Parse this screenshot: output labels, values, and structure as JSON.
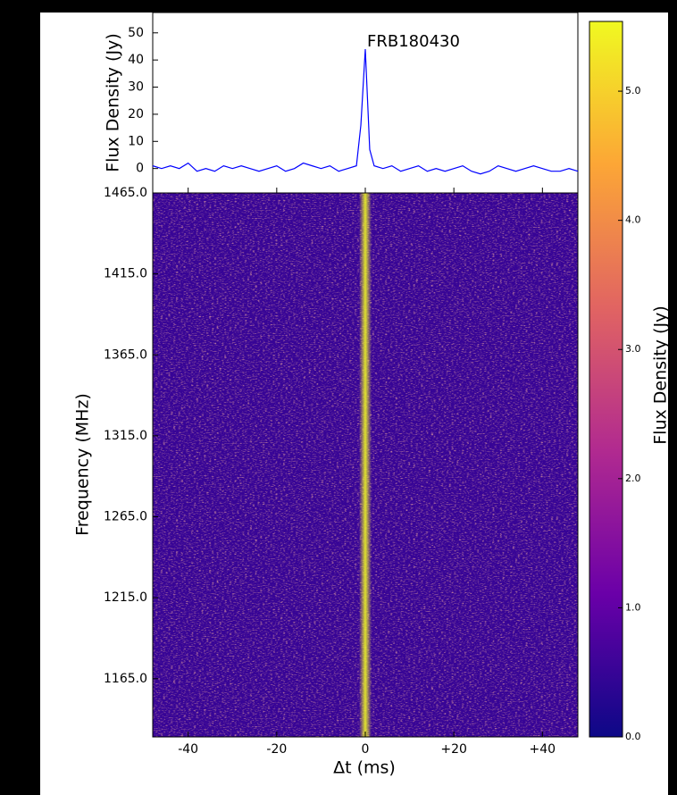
{
  "chart_data": [
    {
      "type": "line",
      "ylabel": "Flux Density (Jy)",
      "annotation": "FRB180430",
      "x": [
        -48,
        -46,
        -44,
        -42,
        -40,
        -38,
        -36,
        -34,
        -32,
        -30,
        -28,
        -26,
        -24,
        -22,
        -20,
        -18,
        -16,
        -14,
        -12,
        -10,
        -8,
        -6,
        -4,
        -2,
        -1,
        0,
        1,
        2,
        4,
        6,
        8,
        10,
        12,
        14,
        16,
        18,
        20,
        22,
        24,
        26,
        28,
        30,
        32,
        34,
        36,
        38,
        40,
        42,
        44,
        46,
        48
      ],
      "series": [
        {
          "color": "#0000ff",
          "values": [
            1,
            0,
            1,
            0,
            2,
            -1,
            0,
            -1,
            1,
            0,
            1,
            0,
            -1,
            0,
            1,
            -1,
            0,
            2,
            1,
            0,
            1,
            -1,
            0,
            1,
            16,
            44,
            7,
            1,
            0,
            1,
            -1,
            0,
            1,
            -1,
            0,
            -1,
            0,
            1,
            -1,
            -2,
            -1,
            1,
            0,
            -1,
            0,
            1,
            0,
            -1,
            -1,
            0,
            -1
          ]
        }
      ],
      "xlim": [
        -48,
        48
      ],
      "ylim": [
        -9,
        57.5
      ],
      "yticks": [
        0,
        10,
        20,
        30,
        40,
        50
      ]
    },
    {
      "type": "heatmap",
      "xlabel": "Δt (ms)",
      "ylabel": "Frequency (MHz)",
      "colormap": "plasma",
      "xlim": [
        -48,
        48
      ],
      "xticks": [
        -40,
        -20,
        0,
        {
          "value": 20,
          "label": "+20"
        },
        {
          "value": 40,
          "label": "+40"
        }
      ],
      "ylim": [
        1129,
        1465
      ],
      "yticks": [
        {
          "value": 1465,
          "label": "1465.0"
        },
        {
          "value": 1415,
          "label": "1415.0"
        },
        {
          "value": 1365,
          "label": "1365.0"
        },
        {
          "value": 1315,
          "label": "1315.0"
        },
        {
          "value": 1265,
          "label": "1265.0"
        },
        {
          "value": 1215,
          "label": "1215.0"
        },
        {
          "value": 1165,
          "label": "1165.0"
        }
      ],
      "colorbar": {
        "label": "Flux Density (Jy)",
        "lim": [
          0,
          5.54
        ],
        "ticks": [
          {
            "value": 0,
            "label": "0.0"
          },
          {
            "value": 1,
            "label": "1.0"
          },
          {
            "value": 2,
            "label": "2.0"
          },
          {
            "value": 3,
            "label": "3.0"
          },
          {
            "value": 4,
            "label": "4.0"
          },
          {
            "value": 5,
            "label": "5.0"
          }
        ]
      }
    }
  ]
}
